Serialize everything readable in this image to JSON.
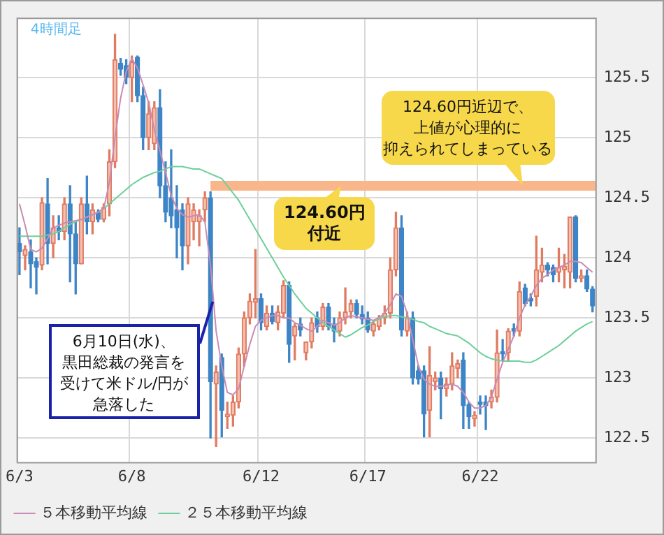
{
  "chart_data": {
    "type": "candlestick",
    "title": "4時間足",
    "categories": [
      "6/3",
      null,
      null,
      null,
      null,
      null,
      null,
      null,
      null,
      null,
      null,
      null,
      null,
      null,
      null,
      null,
      null,
      null,
      null,
      null,
      "6/8",
      null,
      null,
      null,
      null,
      null,
      null,
      null,
      null,
      null,
      null,
      null,
      null,
      null,
      null,
      null,
      null,
      null,
      null,
      null,
      null,
      null,
      null,
      "6/12",
      null,
      null,
      null,
      null,
      null,
      null,
      null,
      null,
      null,
      null,
      null,
      null,
      null,
      null,
      null,
      null,
      null,
      null,
      "6/17",
      null,
      null,
      null,
      null,
      null,
      null,
      null,
      null,
      null,
      null,
      null,
      null,
      null,
      null,
      null,
      null,
      null,
      null,
      null,
      "6/22",
      null,
      null,
      null,
      null,
      null,
      null,
      null,
      null,
      null,
      null,
      null,
      null,
      null,
      null,
      null,
      null,
      null,
      null,
      null,
      null
    ],
    "ohlc": [
      [
        124.12,
        124.25,
        123.86,
        124.05
      ],
      [
        124.02,
        124.1,
        123.9,
        124.07
      ],
      [
        124.05,
        124.15,
        123.75,
        123.95
      ],
      [
        123.97,
        124.0,
        123.7,
        123.92
      ],
      [
        123.94,
        124.5,
        123.9,
        124.46
      ],
      [
        124.45,
        124.66,
        123.95,
        124.12
      ],
      [
        124.12,
        124.35,
        124.0,
        124.25
      ],
      [
        124.25,
        124.35,
        124.15,
        124.22
      ],
      [
        124.22,
        124.5,
        124.15,
        124.45
      ],
      [
        124.45,
        124.6,
        123.8,
        124.2
      ],
      [
        124.2,
        124.3,
        123.7,
        123.95
      ],
      [
        123.95,
        124.5,
        123.95,
        124.45
      ],
      [
        124.45,
        124.68,
        124.2,
        124.3
      ],
      [
        124.3,
        124.45,
        124.2,
        124.4
      ],
      [
        124.38,
        124.4,
        124.3,
        124.32
      ],
      [
        124.32,
        124.45,
        124.3,
        124.42
      ],
      [
        124.45,
        124.9,
        124.35,
        124.8
      ],
      [
        124.8,
        125.86,
        124.75,
        125.65
      ],
      [
        125.62,
        125.66,
        125.52,
        125.57
      ],
      [
        125.6,
        125.65,
        125.45,
        125.5
      ],
      [
        125.5,
        125.68,
        125.3,
        125.63
      ],
      [
        125.67,
        125.68,
        125.3,
        125.35
      ],
      [
        125.35,
        125.42,
        124.9,
        125.0
      ],
      [
        125.0,
        125.3,
        124.9,
        125.2
      ],
      [
        124.95,
        125.3,
        124.9,
        125.25
      ],
      [
        125.25,
        125.4,
        124.5,
        124.6
      ],
      [
        124.6,
        124.8,
        124.3,
        124.38
      ],
      [
        124.5,
        124.9,
        124.25,
        124.35
      ],
      [
        124.4,
        124.6,
        124.0,
        124.25
      ],
      [
        124.4,
        124.45,
        123.9,
        124.1
      ],
      [
        124.1,
        124.5,
        123.95,
        124.45
      ],
      [
        124.3,
        124.45,
        124.15,
        124.4
      ],
      [
        124.3,
        124.4,
        124.1,
        124.35
      ],
      [
        124.4,
        124.55,
        124.3,
        124.5
      ],
      [
        124.5,
        124.55,
        122.5,
        122.97
      ],
      [
        122.95,
        123.1,
        122.43,
        123.05
      ],
      [
        123.17,
        123.2,
        122.51,
        122.73
      ],
      [
        122.68,
        122.8,
        122.58,
        122.7
      ],
      [
        122.69,
        122.85,
        122.6,
        122.8
      ],
      [
        122.8,
        123.25,
        122.75,
        123.2
      ],
      [
        123.2,
        123.55,
        123.1,
        123.5
      ],
      [
        123.5,
        123.7,
        123.45,
        123.64
      ],
      [
        123.63,
        124.07,
        123.5,
        123.66
      ],
      [
        123.66,
        123.7,
        123.4,
        123.46
      ],
      [
        123.43,
        123.6,
        123.4,
        123.54
      ],
      [
        123.54,
        123.6,
        123.45,
        123.47
      ],
      [
        123.46,
        123.6,
        123.4,
        123.55
      ],
      [
        123.54,
        123.81,
        123.5,
        123.77
      ],
      [
        123.77,
        123.8,
        123.13,
        123.28
      ],
      [
        123.35,
        123.45,
        123.15,
        123.43
      ],
      [
        123.45,
        123.5,
        123.35,
        123.4
      ],
      [
        123.21,
        123.3,
        123.15,
        123.3
      ],
      [
        123.3,
        123.5,
        123.25,
        123.46
      ],
      [
        123.5,
        123.55,
        123.38,
        123.43
      ],
      [
        123.43,
        123.62,
        123.4,
        123.59
      ],
      [
        123.59,
        123.62,
        123.4,
        123.43
      ],
      [
        123.45,
        123.5,
        123.3,
        123.39
      ],
      [
        123.39,
        123.55,
        123.35,
        123.5
      ],
      [
        123.5,
        123.75,
        123.45,
        123.55
      ],
      [
        123.55,
        123.65,
        123.5,
        123.62
      ],
      [
        123.62,
        123.65,
        123.5,
        123.53
      ],
      [
        123.53,
        123.6,
        123.45,
        123.49
      ],
      [
        123.5,
        123.55,
        123.38,
        123.4
      ],
      [
        123.39,
        123.48,
        123.35,
        123.45
      ],
      [
        123.43,
        123.52,
        123.4,
        123.5
      ],
      [
        123.5,
        123.6,
        123.45,
        123.54
      ],
      [
        123.54,
        124.0,
        123.5,
        123.9
      ],
      [
        123.9,
        124.38,
        123.85,
        124.25
      ],
      [
        124.25,
        124.35,
        123.35,
        123.4
      ],
      [
        123.39,
        123.55,
        123.35,
        123.5
      ],
      [
        123.5,
        123.55,
        122.95,
        123.0
      ],
      [
        123.06,
        123.1,
        122.95,
        122.99
      ],
      [
        123.06,
        123.1,
        122.51,
        122.7
      ],
      [
        122.73,
        123.26,
        122.51,
        123.02
      ],
      [
        122.97,
        123.05,
        122.9,
        123.0
      ],
      [
        123.0,
        123.05,
        122.66,
        122.91
      ],
      [
        122.91,
        123.0,
        122.85,
        122.95
      ],
      [
        122.95,
        123.21,
        122.9,
        123.1
      ],
      [
        123.08,
        123.15,
        123.0,
        123.12
      ],
      [
        123.15,
        123.21,
        122.58,
        122.77
      ],
      [
        122.78,
        122.8,
        122.58,
        122.68
      ],
      [
        122.66,
        122.72,
        122.6,
        122.69
      ],
      [
        122.8,
        122.85,
        122.7,
        122.78
      ],
      [
        122.8,
        122.85,
        122.57,
        122.77
      ],
      [
        122.8,
        122.9,
        122.75,
        122.84
      ],
      [
        122.84,
        123.4,
        122.8,
        123.21
      ],
      [
        123.22,
        123.32,
        123.15,
        123.2
      ],
      [
        123.21,
        123.41,
        123.15,
        123.39
      ],
      [
        123.41,
        123.45,
        123.35,
        123.39
      ],
      [
        123.39,
        123.8,
        123.35,
        123.72
      ],
      [
        123.75,
        123.78,
        123.6,
        123.62
      ],
      [
        123.66,
        123.7,
        123.6,
        123.64
      ],
      [
        123.68,
        124.18,
        123.6,
        123.9
      ],
      [
        123.88,
        124.08,
        123.8,
        123.94
      ],
      [
        123.94,
        123.96,
        123.85,
        123.9
      ],
      [
        123.92,
        123.94,
        123.8,
        123.86
      ],
      [
        123.88,
        124.08,
        123.8,
        123.92
      ],
      [
        123.9,
        124.03,
        123.75,
        123.93
      ],
      [
        123.88,
        124.34,
        123.75,
        124.34
      ],
      [
        124.34,
        124.35,
        123.8,
        123.83
      ],
      [
        123.83,
        123.9,
        123.8,
        123.85
      ],
      [
        123.85,
        123.9,
        123.72,
        123.74
      ],
      [
        123.74,
        123.76,
        123.55,
        123.6
      ]
    ],
    "series": [
      {
        "name": "５本移動平均線",
        "type": "line",
        "color": "#c98bb5",
        "values": [
          124.45,
          124.27,
          124.07,
          124.05,
          124.08,
          124.16,
          124.25,
          124.27,
          124.29,
          124.3,
          124.31,
          124.32,
          124.34,
          124.36,
          124.38,
          124.41,
          124.63,
          125.0,
          125.33,
          125.55,
          125.66,
          125.58,
          125.44,
          125.29,
          125.07,
          124.89,
          124.71,
          124.52,
          124.41,
          124.36,
          124.34,
          124.35,
          124.36,
          124.3,
          123.94,
          123.39,
          123.1,
          122.88,
          122.86,
          122.91,
          123.1,
          123.28,
          123.43,
          123.48,
          123.5,
          123.52,
          123.52,
          123.5,
          123.5,
          123.46,
          123.44,
          123.41,
          123.39,
          123.43,
          123.48,
          123.46,
          123.44,
          123.46,
          123.5,
          123.52,
          123.51,
          123.5,
          123.49,
          123.48,
          123.5,
          123.54,
          123.61,
          123.7,
          123.68,
          123.54,
          123.32,
          123.1,
          122.99,
          122.95,
          122.93,
          122.93,
          122.94,
          122.95,
          122.93,
          122.88,
          122.8,
          122.75,
          122.75,
          122.77,
          122.84,
          122.99,
          123.13,
          123.24,
          123.35,
          123.5,
          123.61,
          123.68,
          123.77,
          123.83,
          123.86,
          123.9,
          123.92,
          123.94,
          123.97,
          123.97,
          123.96,
          123.92,
          123.88
        ]
      },
      {
        "name": "２５本移動平均線",
        "type": "line",
        "color": "#6dcf9b",
        "values": [
          124.18,
          124.18,
          124.18,
          124.18,
          124.18,
          124.19,
          124.2,
          124.22,
          124.25,
          124.28,
          124.3,
          124.32,
          124.34,
          124.36,
          124.38,
          124.41,
          124.45,
          124.49,
          124.53,
          124.57,
          124.61,
          124.64,
          124.67,
          124.69,
          124.71,
          124.72,
          124.74,
          124.76,
          124.76,
          124.76,
          124.75,
          124.74,
          124.74,
          124.72,
          124.7,
          124.68,
          124.66,
          124.6,
          124.54,
          124.48,
          124.4,
          124.32,
          124.24,
          124.16,
          124.08,
          124.0,
          123.92,
          123.84,
          123.77,
          123.7,
          123.64,
          123.58,
          123.54,
          123.5,
          123.46,
          123.43,
          123.4,
          123.37,
          123.34,
          123.36,
          123.39,
          123.42,
          123.44,
          123.47,
          123.49,
          123.51,
          123.52,
          123.52,
          123.51,
          123.5,
          123.49,
          123.47,
          123.46,
          123.43,
          123.41,
          123.39,
          123.37,
          123.36,
          123.35,
          123.32,
          123.29,
          123.25,
          123.21,
          123.18,
          123.16,
          123.15,
          123.14,
          123.14,
          123.14,
          123.14,
          123.13,
          123.13,
          123.15,
          123.18,
          123.21,
          123.24,
          123.27,
          123.31,
          123.35,
          123.39,
          123.42,
          123.45,
          123.47
        ]
      }
    ],
    "ylim": [
      122.3,
      126.0
    ],
    "yticks": [
      122.5,
      123,
      123.5,
      124,
      124.5,
      125,
      125.5
    ],
    "grid": true,
    "legend": "bottom",
    "marker": "none",
    "ref_lines": [
      {
        "axis": "y",
        "value": 124.6,
        "color": "#f9b68b"
      }
    ],
    "annotations": [
      {
        "text": "124.60円付近",
        "y": 124.6
      },
      {
        "text": "124.60円近辺で、上値が心理的に抑えられてしまっている",
        "y": 124.6
      },
      "6月10日(水)、黒田総裁の発言を受けて米ドル/円が急落した"
    ]
  }
}
